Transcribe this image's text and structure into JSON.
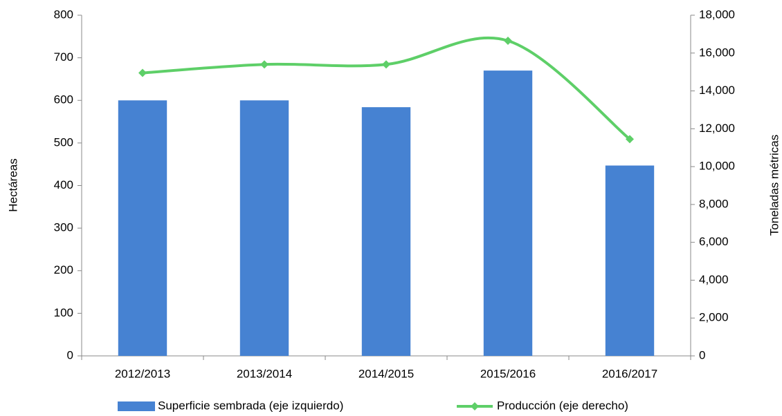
{
  "chart_data": {
    "type": "bar_line",
    "categories": [
      "2012/2013",
      "2013/2014",
      "2014/2015",
      "2015/2016",
      "2016/2017"
    ],
    "series": [
      {
        "name": "Superficie sembrada (eje izquierdo)",
        "type": "bar",
        "color": "#4682d2",
        "values": [
          600,
          600,
          584,
          670,
          447
        ]
      },
      {
        "name": "Producción (eje derecho)",
        "type": "line",
        "color": "#5ecf68",
        "axis": "y2",
        "values": [
          14950,
          15400,
          15400,
          16650,
          11450
        ]
      }
    ],
    "ylabel": "Hectáreas",
    "y2label": "Toneladas métricas",
    "ylim": [
      0,
      800
    ],
    "yticks": [
      0,
      100,
      200,
      300,
      400,
      500,
      600,
      700,
      800
    ],
    "y2lim": [
      0,
      18000
    ],
    "y2ticks": [
      0,
      {
        "value": 2000,
        "label": "2,000"
      },
      {
        "value": 4000,
        "label": "4,000"
      },
      {
        "value": 6000,
        "label": "6,000"
      },
      {
        "value": 8000,
        "label": "8,000"
      },
      {
        "value": 10000,
        "label": "10,000"
      },
      {
        "value": 12000,
        "label": "12,000"
      },
      {
        "value": 14000,
        "label": "14,000"
      },
      {
        "value": 16000,
        "label": "16,000"
      },
      {
        "value": 18000,
        "label": "18,000"
      }
    ],
    "legend": "bottom"
  }
}
